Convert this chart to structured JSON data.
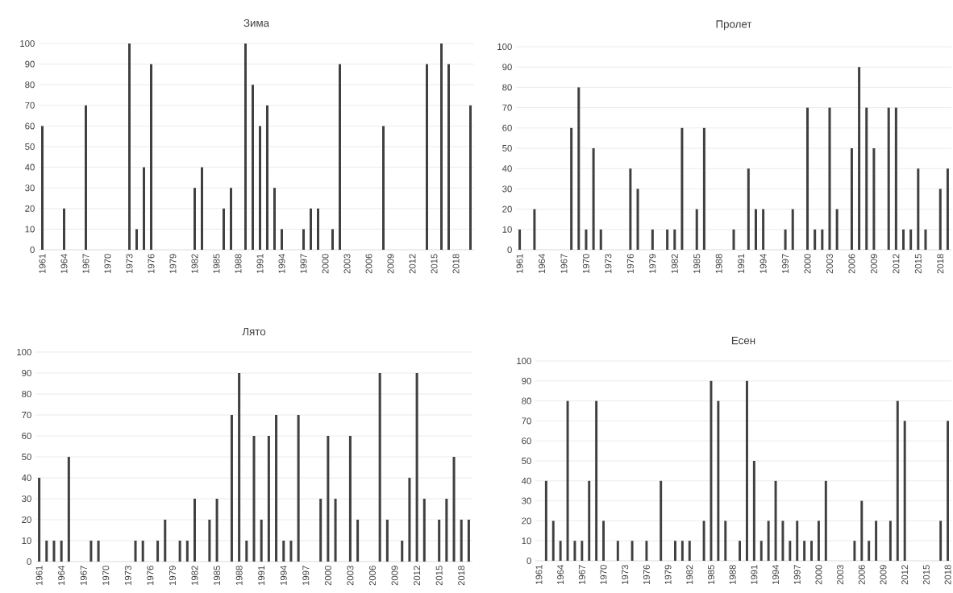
{
  "chart_data": [
    {
      "type": "bar",
      "title": "Зима",
      "color": "#404040",
      "grid": "y",
      "ylim": [
        0,
        100
      ],
      "yticks": [
        0,
        10,
        20,
        30,
        40,
        50,
        60,
        70,
        80,
        90,
        100
      ],
      "categories": [
        "1961",
        null,
        null,
        "1964",
        null,
        null,
        "1967",
        null,
        null,
        "1970",
        null,
        null,
        "1973",
        null,
        null,
        "1976",
        null,
        null,
        "1979",
        null,
        null,
        "1982",
        null,
        null,
        "1985",
        null,
        null,
        "1988",
        null,
        null,
        "1991",
        null,
        null,
        "1994",
        null,
        null,
        "1997",
        null,
        null,
        "2000",
        null,
        null,
        "2003",
        null,
        null,
        "2006",
        null,
        null,
        "2009",
        null,
        null,
        "2012",
        null,
        null,
        "2015",
        null,
        null,
        "2018",
        null,
        null
      ],
      "values": [
        60,
        0,
        0,
        20,
        0,
        0,
        70,
        0,
        0,
        0,
        0,
        0,
        100,
        10,
        40,
        90,
        0,
        0,
        0,
        0,
        0,
        30,
        40,
        0,
        0,
        20,
        30,
        0,
        100,
        80,
        60,
        70,
        30,
        10,
        0,
        0,
        10,
        20,
        20,
        0,
        10,
        90,
        0,
        0,
        0,
        0,
        0,
        60,
        0,
        0,
        0,
        0,
        0,
        90,
        0,
        100,
        90,
        0,
        0,
        70
      ]
    },
    {
      "type": "bar",
      "title": "Пролет",
      "color": "#404040",
      "grid": "y",
      "ylim": [
        0,
        100
      ],
      "yticks": [
        0,
        10,
        20,
        30,
        40,
        50,
        60,
        70,
        80,
        90,
        100
      ],
      "categories": [
        "1961",
        null,
        null,
        "1964",
        null,
        null,
        "1967",
        null,
        null,
        "1970",
        null,
        null,
        "1973",
        null,
        null,
        "1976",
        null,
        null,
        "1979",
        null,
        null,
        "1982",
        null,
        null,
        "1985",
        null,
        null,
        "1988",
        null,
        null,
        "1991",
        null,
        null,
        "1994",
        null,
        null,
        "1997",
        null,
        null,
        "2000",
        null,
        null,
        "2003",
        null,
        null,
        "2006",
        null,
        null,
        "2009",
        null,
        null,
        "2012",
        null,
        null,
        "2015",
        null,
        null,
        "2018",
        null
      ],
      "values": [
        10,
        0,
        20,
        0,
        0,
        0,
        0,
        60,
        80,
        10,
        50,
        10,
        0,
        0,
        0,
        40,
        30,
        0,
        10,
        0,
        10,
        10,
        60,
        0,
        20,
        60,
        0,
        0,
        0,
        10,
        0,
        40,
        20,
        20,
        0,
        0,
        10,
        20,
        0,
        70,
        10,
        10,
        70,
        20,
        0,
        50,
        90,
        70,
        50,
        0,
        70,
        70,
        10,
        10,
        40,
        10,
        0,
        30,
        40
      ]
    },
    {
      "type": "bar",
      "title": "Лято",
      "color": "#404040",
      "grid": "y",
      "ylim": [
        0,
        100
      ],
      "yticks": [
        0,
        10,
        20,
        30,
        40,
        50,
        60,
        70,
        80,
        90,
        100
      ],
      "categories": [
        "1961",
        null,
        null,
        "1964",
        null,
        null,
        "1967",
        null,
        null,
        "1970",
        null,
        null,
        "1973",
        null,
        null,
        "1976",
        null,
        null,
        "1979",
        null,
        null,
        "1982",
        null,
        null,
        "1985",
        null,
        null,
        "1988",
        null,
        null,
        "1991",
        null,
        null,
        "1994",
        null,
        null,
        "1997",
        null,
        null,
        "2000",
        null,
        null,
        "2003",
        null,
        null,
        "2006",
        null,
        null,
        "2009",
        null,
        null,
        "2012",
        null,
        null,
        "2015",
        null,
        null,
        "2018",
        null
      ],
      "values": [
        40,
        10,
        10,
        10,
        50,
        0,
        0,
        10,
        10,
        0,
        0,
        0,
        0,
        10,
        10,
        0,
        10,
        20,
        0,
        10,
        10,
        30,
        0,
        20,
        30,
        0,
        70,
        90,
        10,
        60,
        20,
        60,
        70,
        10,
        10,
        70,
        0,
        0,
        30,
        60,
        30,
        0,
        60,
        20,
        0,
        0,
        90,
        20,
        0,
        10,
        40,
        90,
        30,
        0,
        20,
        30,
        50,
        20,
        20
      ]
    },
    {
      "type": "bar",
      "title": "Есен",
      "color": "#404040",
      "grid": "y",
      "ylim": [
        0,
        100
      ],
      "yticks": [
        0,
        10,
        20,
        30,
        40,
        50,
        60,
        70,
        80,
        90,
        100
      ],
      "categories": [
        "1961",
        null,
        null,
        "1964",
        null,
        null,
        "1967",
        null,
        null,
        "1970",
        null,
        null,
        "1973",
        null,
        null,
        "1976",
        null,
        null,
        "1979",
        null,
        null,
        "1982",
        null,
        null,
        "1985",
        null,
        null,
        "1988",
        null,
        null,
        "1991",
        null,
        null,
        "1994",
        null,
        null,
        "1997",
        null,
        null,
        "2000",
        null,
        null,
        "2003",
        null,
        null,
        "2006",
        null,
        null,
        "2009",
        null,
        null,
        "2012",
        null,
        null,
        "2015",
        null,
        null,
        "2018"
      ],
      "values": [
        0,
        40,
        20,
        10,
        80,
        10,
        10,
        40,
        80,
        20,
        0,
        10,
        0,
        10,
        0,
        10,
        0,
        40,
        0,
        10,
        10,
        10,
        0,
        20,
        90,
        80,
        20,
        0,
        10,
        90,
        50,
        10,
        20,
        40,
        20,
        10,
        20,
        10,
        10,
        20,
        40,
        0,
        0,
        0,
        10,
        30,
        10,
        20,
        0,
        20,
        80,
        70,
        0,
        0,
        0,
        0,
        20,
        70
      ]
    }
  ]
}
